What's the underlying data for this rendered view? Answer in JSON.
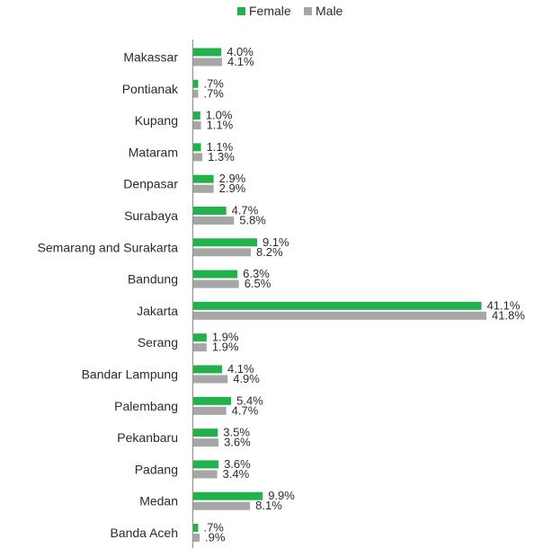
{
  "chart_data": {
    "type": "bar",
    "orientation": "horizontal",
    "categories": [
      "Makassar",
      "Pontianak",
      "Kupang",
      "Mataram",
      "Denpasar",
      "Surabaya",
      "Semarang and Surakarta",
      "Bandung",
      "Jakarta",
      "Serang",
      "Bandar Lampung",
      "Palembang",
      "Pekanbaru",
      "Padang",
      "Medan",
      "Banda Aceh"
    ],
    "series": [
      {
        "name": "Female",
        "color": "#21b24b",
        "values": [
          4.0,
          0.7,
          1.0,
          1.1,
          2.9,
          4.7,
          9.1,
          6.3,
          41.1,
          1.9,
          4.1,
          5.4,
          3.5,
          3.6,
          9.9,
          0.7
        ],
        "labels": [
          "4.0%",
          ".7%",
          "1.0%",
          "1.1%",
          "2.9%",
          "4.7%",
          "9.1%",
          "6.3%",
          "41.1%",
          "1.9%",
          "4.1%",
          "5.4%",
          "3.5%",
          "3.6%",
          "9.9%",
          ".7%"
        ]
      },
      {
        "name": "Male",
        "color": "#a6a6a6",
        "values": [
          4.1,
          0.7,
          1.1,
          1.3,
          2.9,
          5.8,
          8.2,
          6.5,
          41.8,
          1.9,
          4.9,
          4.7,
          3.6,
          3.4,
          8.1,
          0.9
        ],
        "labels": [
          "4.1%",
          ".7%",
          "1.1%",
          "1.3%",
          "2.9%",
          "5.8%",
          "8.2%",
          "6.5%",
          "41.8%",
          "1.9%",
          "4.9%",
          "4.7%",
          "3.6%",
          "3.4%",
          "8.1%",
          ".9%"
        ]
      }
    ],
    "title": "",
    "xlabel": "",
    "ylabel": "",
    "xlim": [
      0,
      42
    ],
    "grid": false,
    "legend": "top-center"
  }
}
